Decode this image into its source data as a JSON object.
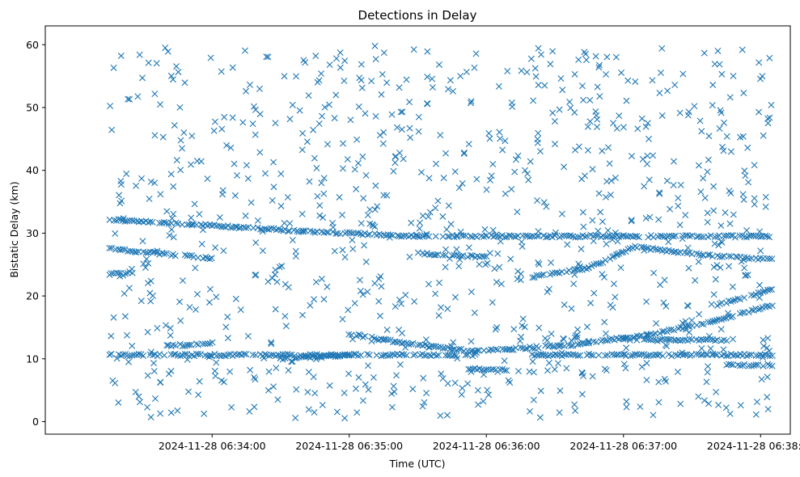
{
  "chart_data": {
    "type": "scatter",
    "title": "Detections in Delay",
    "xlabel": "Time (UTC)",
    "ylabel": "Bistatic Delay (km)",
    "x_unit": "time (UTC), 2024-11-28",
    "xlim": [
      "06:32:47",
      "06:38:13"
    ],
    "ylim": [
      -2,
      63
    ],
    "x_ticks": [
      "2024-11-28 06:34:00",
      "2024-11-28 06:35:00",
      "2024-11-28 06:36:00",
      "2024-11-28 06:37:00",
      "2024-11-28 06:38:00"
    ],
    "y_ticks": [
      "0",
      "10",
      "20",
      "30",
      "40",
      "50",
      "60"
    ],
    "y_tick_values": [
      0,
      10,
      20,
      30,
      40,
      50,
      60
    ],
    "marker": "x",
    "color": "#1f77b4",
    "grid": false,
    "legend": "none",
    "tracks": [
      {
        "x": [
          "06:33:15",
          "06:35:00"
        ],
        "y": [
          10.6,
          10.6
        ]
      },
      {
        "x": [
          "06:35:00",
          "06:35:55"
        ],
        "y": [
          10.6,
          10.6
        ]
      },
      {
        "x": [
          "06:36:20",
          "06:38:05"
        ],
        "y": [
          10.6,
          10.6
        ]
      },
      {
        "x": [
          "06:33:15",
          "06:34:40",
          "06:35:30",
          "06:36:00",
          "06:36:30",
          "06:37:00",
          "06:38:05"
        ],
        "y": [
          32.2,
          30.3,
          29.5,
          29.5,
          29.5,
          29.5,
          29.5
        ]
      },
      {
        "x": [
          "06:33:15",
          "06:34:00"
        ],
        "y": [
          27.5,
          26.0
        ]
      },
      {
        "x": [
          "06:33:15",
          "06:33:25"
        ],
        "y": [
          23.5,
          23.8
        ]
      },
      {
        "x": [
          "06:34:30",
          "06:35:00"
        ],
        "y": [
          10.0,
          10.6
        ]
      },
      {
        "x": [
          "06:35:00",
          "06:35:15",
          "06:35:35",
          "06:35:55",
          "06:36:10",
          "06:36:40",
          "06:37:10",
          "06:37:40",
          "06:38:05"
        ],
        "y": [
          14.0,
          13.0,
          12.0,
          11.2,
          11.5,
          12.3,
          13.8,
          16.0,
          18.5
        ]
      },
      {
        "x": [
          "06:36:20",
          "06:36:45",
          "06:37:05",
          "06:37:35",
          "06:38:05"
        ],
        "y": [
          23.0,
          24.5,
          27.8,
          26.5,
          25.8
        ]
      },
      {
        "x": [
          "06:37:40",
          "06:38:05"
        ],
        "y": [
          18.5,
          21.0
        ]
      },
      {
        "x": [
          "06:35:30",
          "06:36:00"
        ],
        "y": [
          26.8,
          26.2
        ]
      },
      {
        "x": [
          "06:33:40",
          "06:34:00"
        ],
        "y": [
          12.0,
          12.5
        ]
      },
      {
        "x": [
          "06:37:00",
          "06:37:45"
        ],
        "y": [
          13.0,
          13.0
        ]
      },
      {
        "x": [
          "06:37:45",
          "06:38:05"
        ],
        "y": [
          9.0,
          9.0
        ]
      },
      {
        "x": [
          "06:35:50",
          "06:36:10"
        ],
        "y": [
          8.3,
          8.3
        ]
      }
    ],
    "noise": {
      "x_range": [
        "06:33:15",
        "06:38:05"
      ],
      "y_range": [
        0.5,
        60
      ],
      "count": 900
    }
  }
}
